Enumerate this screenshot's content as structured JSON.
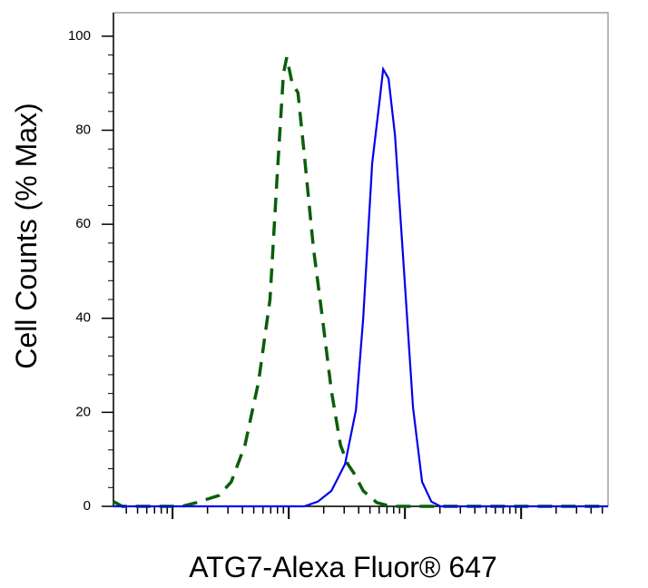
{
  "chart_data": {
    "type": "line",
    "xscale": "log",
    "ylabel": "Cell Counts (% Max)",
    "xlabel": "ATG7-Alexa Fluor® 647",
    "xlim": [
      3.1,
      56000
    ],
    "xticks": [
      10,
      100,
      1000,
      10000
    ],
    "ylim": [
      0,
      105
    ],
    "yticks": [
      0,
      20,
      40,
      60,
      80,
      100
    ],
    "series": [
      {
        "color": "#0b5e0b",
        "dash": true,
        "x": [
          3.1,
          3.7,
          12,
          16,
          25,
          32,
          42,
          55,
          69,
          79,
          90,
          96,
          107,
          120,
          136,
          163,
          195,
          233,
          279,
          322,
          365,
          437,
          573,
          750,
          1290,
          56000
        ],
        "values": [
          1,
          0,
          0,
          0.8,
          2.3,
          5.2,
          13,
          26.5,
          44,
          69,
          92,
          95.5,
          90,
          88,
          75,
          55,
          40,
          24.5,
          13,
          9,
          7,
          3.3,
          0.8,
          0,
          0,
          0
        ]
      },
      {
        "color": "#0000ee",
        "dash": false,
        "x": [
          3.1,
          87,
          136,
          178,
          233,
          305,
          379,
          437,
          523,
          604,
          650,
          723,
          821,
          982,
          1175,
          1406,
          1687,
          2018,
          56000
        ],
        "values": [
          0,
          0,
          0,
          1,
          3.3,
          9,
          20.5,
          40,
          73,
          86,
          93,
          91,
          79,
          50,
          21,
          5.2,
          1,
          0,
          0
        ]
      }
    ]
  }
}
